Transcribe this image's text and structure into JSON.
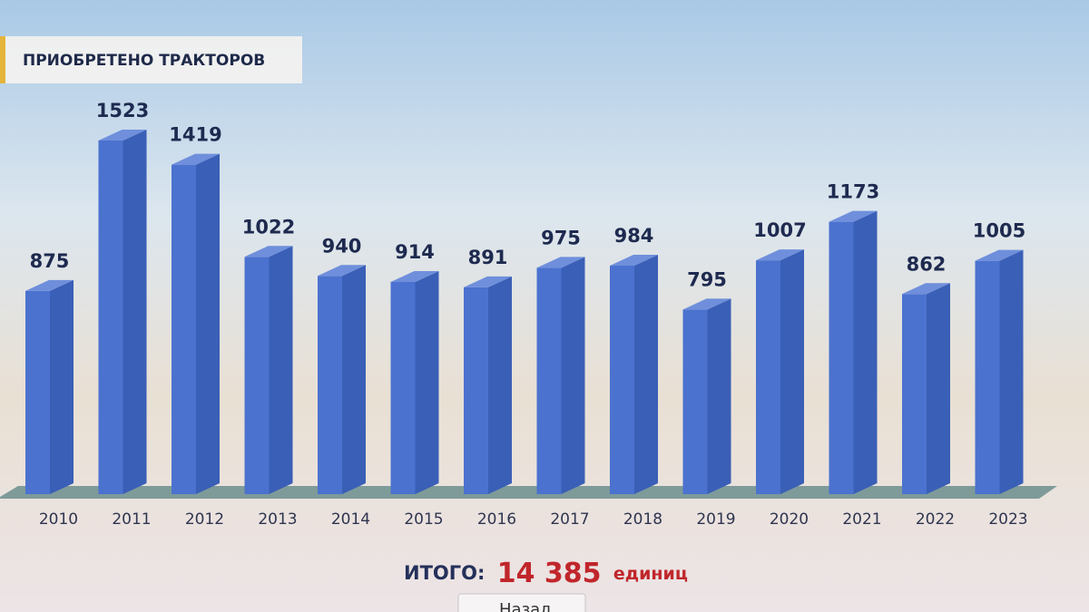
{
  "chart_data": {
    "type": "bar3d",
    "title": "ПРИОБРЕТЕНО ТРАКТОРОВ",
    "categories": [
      "2010",
      "2011",
      "2012",
      "2013",
      "2014",
      "2015",
      "2016",
      "2017",
      "2018",
      "2019",
      "2020",
      "2021",
      "2022",
      "2023"
    ],
    "values": [
      875,
      1523,
      1419,
      1022,
      940,
      914,
      891,
      975,
      984,
      795,
      1007,
      1173,
      862,
      1005
    ],
    "color": "#4b72cf",
    "total_prefix": "ИТОГО:",
    "total": {
      "value": 14385,
      "label": "14 385"
    },
    "total_unit": "единиц",
    "button": "Назад"
  }
}
